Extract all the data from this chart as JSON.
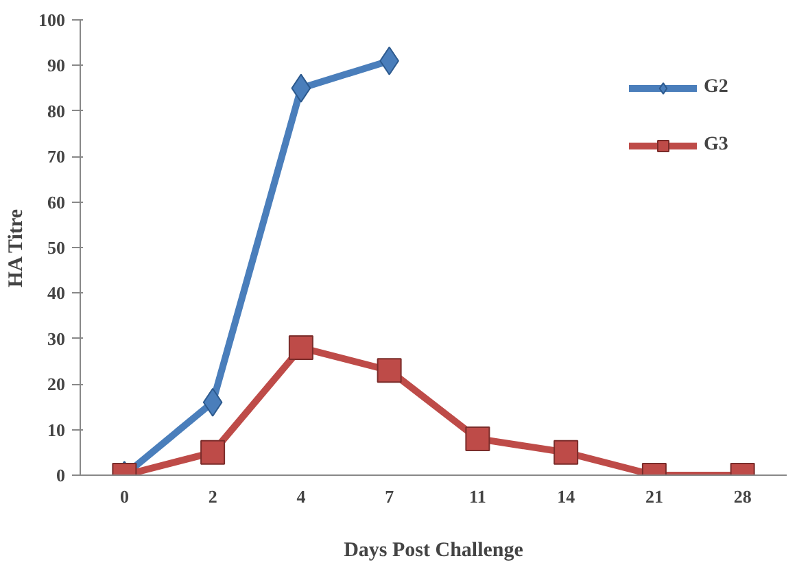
{
  "chart_data": {
    "type": "line",
    "xlabel": "Days Post Challenge",
    "ylabel": "HA Titre",
    "categories": [
      "0",
      "2",
      "4",
      "7",
      "11",
      "14",
      "21",
      "28"
    ],
    "series": [
      {
        "name": "G2",
        "color": "#4a7ebb",
        "marker": "diamond",
        "values": [
          0,
          16,
          85,
          91,
          null,
          null,
          null,
          null
        ]
      },
      {
        "name": "G3",
        "color": "#be4b48",
        "marker": "square",
        "values": [
          0,
          5,
          28,
          23,
          8,
          5,
          0,
          0
        ]
      }
    ],
    "ylim": [
      0,
      100
    ],
    "yticks": [
      0,
      10,
      20,
      30,
      40,
      50,
      60,
      70,
      80,
      90,
      100
    ],
    "grid": false,
    "legend": "top right"
  }
}
